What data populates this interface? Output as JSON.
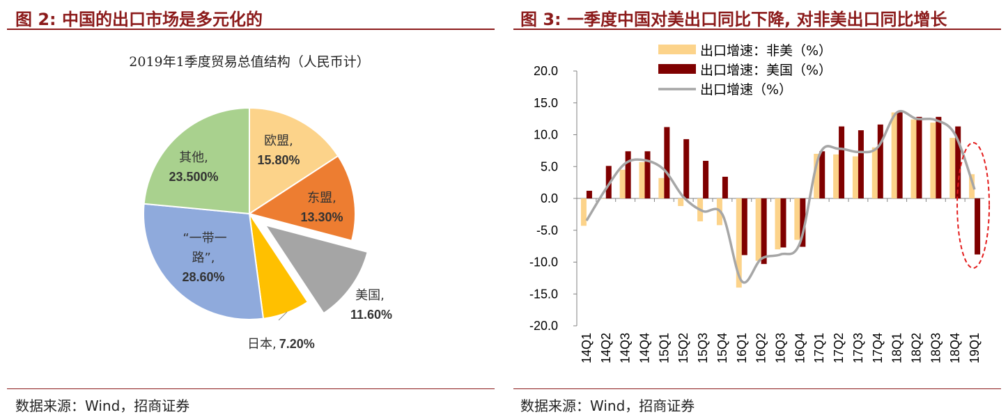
{
  "left_panel": {
    "title": "图 2:  中国的出口市场是多元化的",
    "source": "数据来源：Wind，招商证券"
  },
  "right_panel": {
    "title": "图 3: 一季度中国对美出口同比下降, 对非美出口同比增长",
    "source": "数据来源：Wind，招商证券"
  },
  "chart_data": [
    {
      "type": "pie",
      "title": "2019年1季度贸易总值结构（人民币计）",
      "slices": [
        {
          "name": "欧盟,",
          "label": "15.80%",
          "value": 15.8,
          "color": "#fcd38a"
        },
        {
          "name": "东盟,",
          "label": "13.30%",
          "value": 13.3,
          "color": "#ed7d31"
        },
        {
          "name": "美国,",
          "label": "11.60%",
          "value": 11.6,
          "color": "#a5a5a5",
          "exploded": true
        },
        {
          "name": "日本,",
          "label": "7.20%",
          "value": 7.2,
          "color": "#ffc000"
        },
        {
          "name": "“一带一路”,",
          "label": "28.60%",
          "value": 28.6,
          "color": "#8faadc"
        },
        {
          "name": "其他,",
          "label": "23.500%",
          "value": 23.5,
          "color": "#a9d18e"
        }
      ]
    },
    {
      "type": "bar",
      "categories": [
        "14Q1",
        "14Q2",
        "14Q3",
        "14Q4",
        "15Q1",
        "15Q2",
        "15Q3",
        "15Q4",
        "16Q1",
        "16Q2",
        "16Q3",
        "16Q4",
        "17Q1",
        "17Q2",
        "17Q3",
        "17Q4",
        "18Q1",
        "18Q2",
        "18Q3",
        "18Q4",
        "19Q1"
      ],
      "ylim": [
        -20,
        20
      ],
      "yticks": [
        "20.0",
        "15.0",
        "10.0",
        "5.0",
        "0.0",
        "-5.0",
        "-10.0",
        "-15.0",
        "-20.0"
      ],
      "legend_position": "top-left",
      "series": [
        {
          "name": "出口增速：非美（%）",
          "kind": "bar",
          "color": "#fcd38a",
          "values": [
            -4.3,
            0.0,
            4.5,
            5.7,
            3.2,
            -1.2,
            -3.6,
            -4.2,
            -14.0,
            -9.8,
            -8.0,
            -6.5,
            7.0,
            6.9,
            6.6,
            8.0,
            13.5,
            12.4,
            11.9,
            9.5,
            3.8
          ]
        },
        {
          "name": "出口增速：美国（%）",
          "kind": "bar",
          "color": "#7f0000",
          "values": [
            1.2,
            5.1,
            7.4,
            7.4,
            11.2,
            9.3,
            5.9,
            3.4,
            -8.9,
            -10.3,
            -7.7,
            -7.6,
            7.4,
            11.3,
            10.7,
            11.6,
            13.6,
            12.8,
            12.8,
            11.3,
            -8.8
          ]
        },
        {
          "name": "出口增速（%）",
          "kind": "line",
          "color": "#a6a6a6",
          "values": [
            -3.5,
            1.5,
            5.5,
            6.0,
            4.5,
            0.2,
            -2.0,
            -2.5,
            -13.0,
            -9.5,
            -8.8,
            -7.0,
            6.8,
            7.8,
            7.3,
            8.0,
            13.5,
            12.5,
            12.3,
            10.0,
            1.4
          ]
        }
      ],
      "highlight": {
        "category": "19Q1",
        "color": "#e31b1b"
      }
    }
  ]
}
